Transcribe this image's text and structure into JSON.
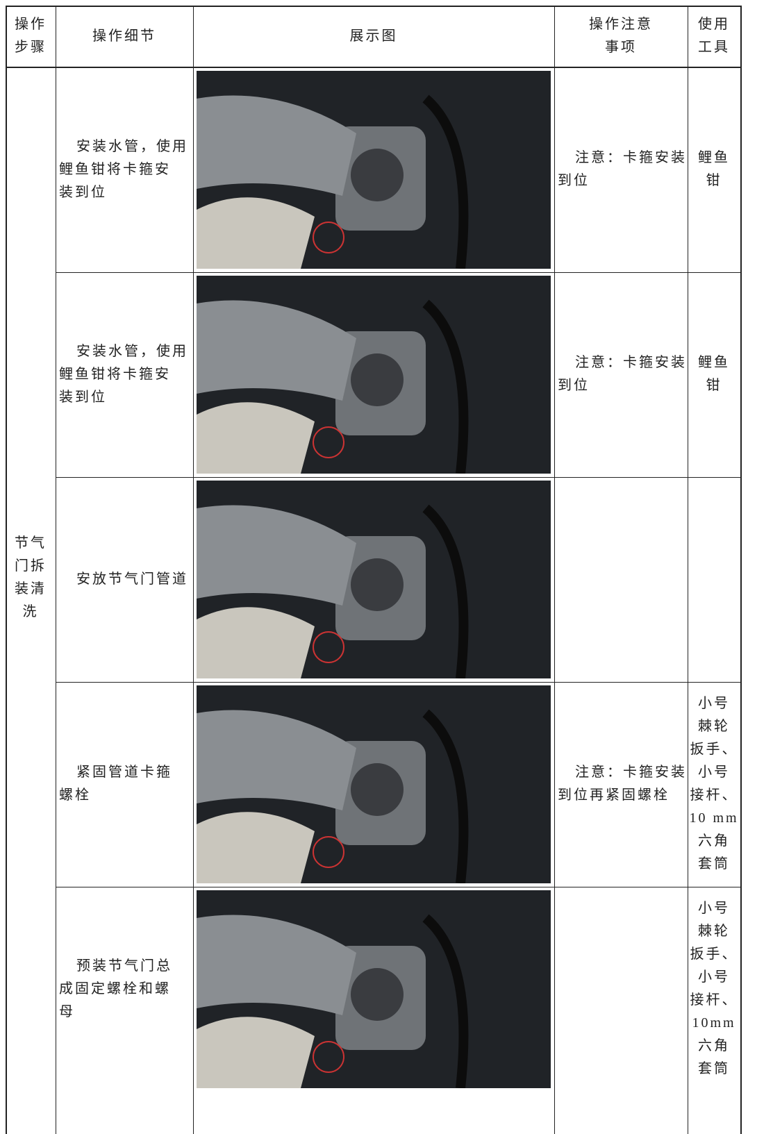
{
  "header": {
    "cells": [
      [
        "操作",
        "步骤"
      ],
      [
        "操作细节"
      ],
      [
        "展示图"
      ],
      [
        "操作注意",
        "事项"
      ],
      [
        "使用",
        "工具"
      ]
    ]
  },
  "step": [
    "节气",
    "门拆",
    "装清",
    "洗"
  ],
  "rows": [
    {
      "detail": [
        "安装水管，使用",
        "鲤鱼钳将卡箍安",
        "装到位"
      ],
      "note": [
        "注意：卡箍安装",
        "到位"
      ],
      "tool": [
        "鲤鱼",
        "钳"
      ]
    },
    {
      "detail": [
        "安装水管，使用",
        "鲤鱼钳将卡箍安",
        "装到位"
      ],
      "note": [
        "注意：卡箍安装",
        "到位"
      ],
      "tool": [
        "鲤鱼",
        "钳"
      ]
    },
    {
      "detail": [
        "安放节气门管道"
      ]
    },
    {
      "detail": [
        "紧固管道卡箍",
        "螺栓"
      ],
      "note": [
        "注意：卡箍安装",
        "到位再紧固螺栓"
      ],
      "tool": [
        "小号",
        "棘轮",
        "扳手、",
        "小号",
        "接杆、",
        "10 mm",
        "六角",
        "套筒"
      ]
    },
    {
      "detail": [
        "预装节气门总",
        "成固定螺栓和螺",
        "母"
      ],
      "tool": [
        "小号",
        "棘轮",
        "扳手、",
        "小号",
        "接杆、",
        "10mm",
        "六角",
        "套筒"
      ]
    }
  ]
}
